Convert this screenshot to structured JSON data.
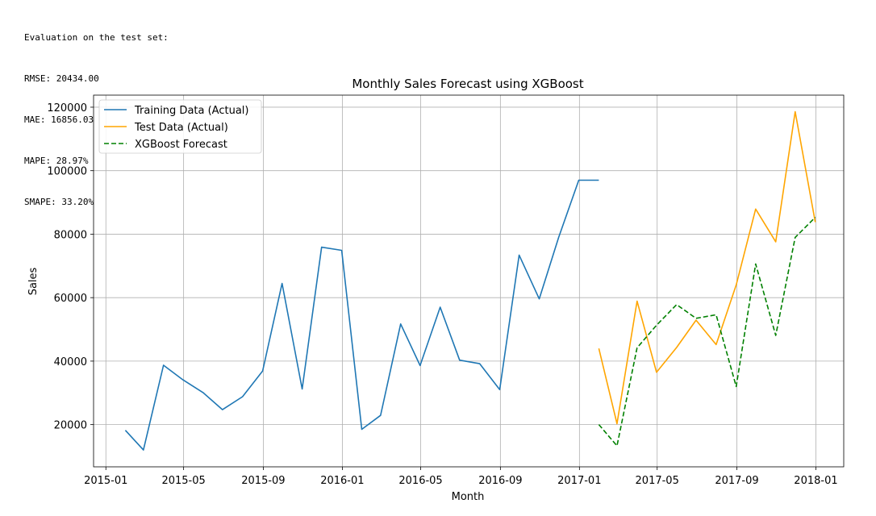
{
  "evaluation": {
    "heading": "Evaluation on the test set:",
    "lines": [
      "RMSE: 20434.00",
      "MAE: 16856.03",
      "MAPE: 28.97%",
      "SMAPE: 33.20%"
    ]
  },
  "colors": {
    "training": "#1f77b4",
    "test": "#ffa500",
    "forecast": "#008000",
    "grid": "#b0b0b0",
    "axis": "#000000"
  },
  "chart_data": {
    "type": "line",
    "title": "Monthly Sales Forecast using XGBoost",
    "xlabel": "Month",
    "ylabel": "Sales",
    "xlim": [
      "2014-12-13",
      "2018-02-13"
    ],
    "ylim": [
      6700,
      123800
    ],
    "x_ticks": [
      "2015-01",
      "2015-05",
      "2015-09",
      "2016-01",
      "2016-05",
      "2016-09",
      "2017-01",
      "2017-05",
      "2017-09",
      "2018-01"
    ],
    "y_ticks": [
      20000,
      40000,
      60000,
      80000,
      100000,
      120000
    ],
    "grid": true,
    "legend_position": "top-left",
    "series": [
      {
        "name": "Training Data (Actual)",
        "style": "solid",
        "color": "#1f77b4",
        "x": [
          "2015-01-31",
          "2015-02-28",
          "2015-03-31",
          "2015-04-30",
          "2015-05-31",
          "2015-06-30",
          "2015-07-31",
          "2015-08-31",
          "2015-09-30",
          "2015-10-31",
          "2015-11-30",
          "2015-12-31",
          "2016-01-31",
          "2016-02-29",
          "2016-03-31",
          "2016-04-30",
          "2016-05-31",
          "2016-06-30",
          "2016-07-31",
          "2016-08-31",
          "2016-09-30",
          "2016-10-31",
          "2016-11-30",
          "2016-12-31",
          "2017-01-31"
        ],
        "y": [
          18200,
          12000,
          38700,
          34100,
          30100,
          24700,
          28800,
          36900,
          64500,
          31200,
          75900,
          74900,
          18500,
          22900,
          51700,
          38600,
          57000,
          40300,
          39200,
          31000,
          73400,
          59600,
          79000,
          97000,
          97000
        ]
      },
      {
        "name": "Test Data (Actual)",
        "style": "solid",
        "color": "#ffa500",
        "x": [
          "2017-01-31",
          "2017-02-28",
          "2017-03-31",
          "2017-04-30",
          "2017-05-31",
          "2017-06-30",
          "2017-07-31",
          "2017-08-31",
          "2017-09-30",
          "2017-10-31",
          "2017-11-30",
          "2017-12-31"
        ],
        "y": [
          44000,
          20300,
          58900,
          36500,
          44300,
          52900,
          45200,
          64000,
          87900,
          77600,
          118600,
          83800
        ]
      },
      {
        "name": "XGBoost Forecast",
        "style": "dashed",
        "color": "#008000",
        "x": [
          "2017-01-31",
          "2017-02-28",
          "2017-03-31",
          "2017-04-30",
          "2017-05-31",
          "2017-06-30",
          "2017-07-31",
          "2017-08-31",
          "2017-09-30",
          "2017-10-31",
          "2017-11-30",
          "2017-12-31"
        ],
        "y": [
          20000,
          13300,
          44200,
          51300,
          57800,
          53500,
          54600,
          32000,
          70600,
          48100,
          79000,
          85300
        ]
      }
    ]
  }
}
